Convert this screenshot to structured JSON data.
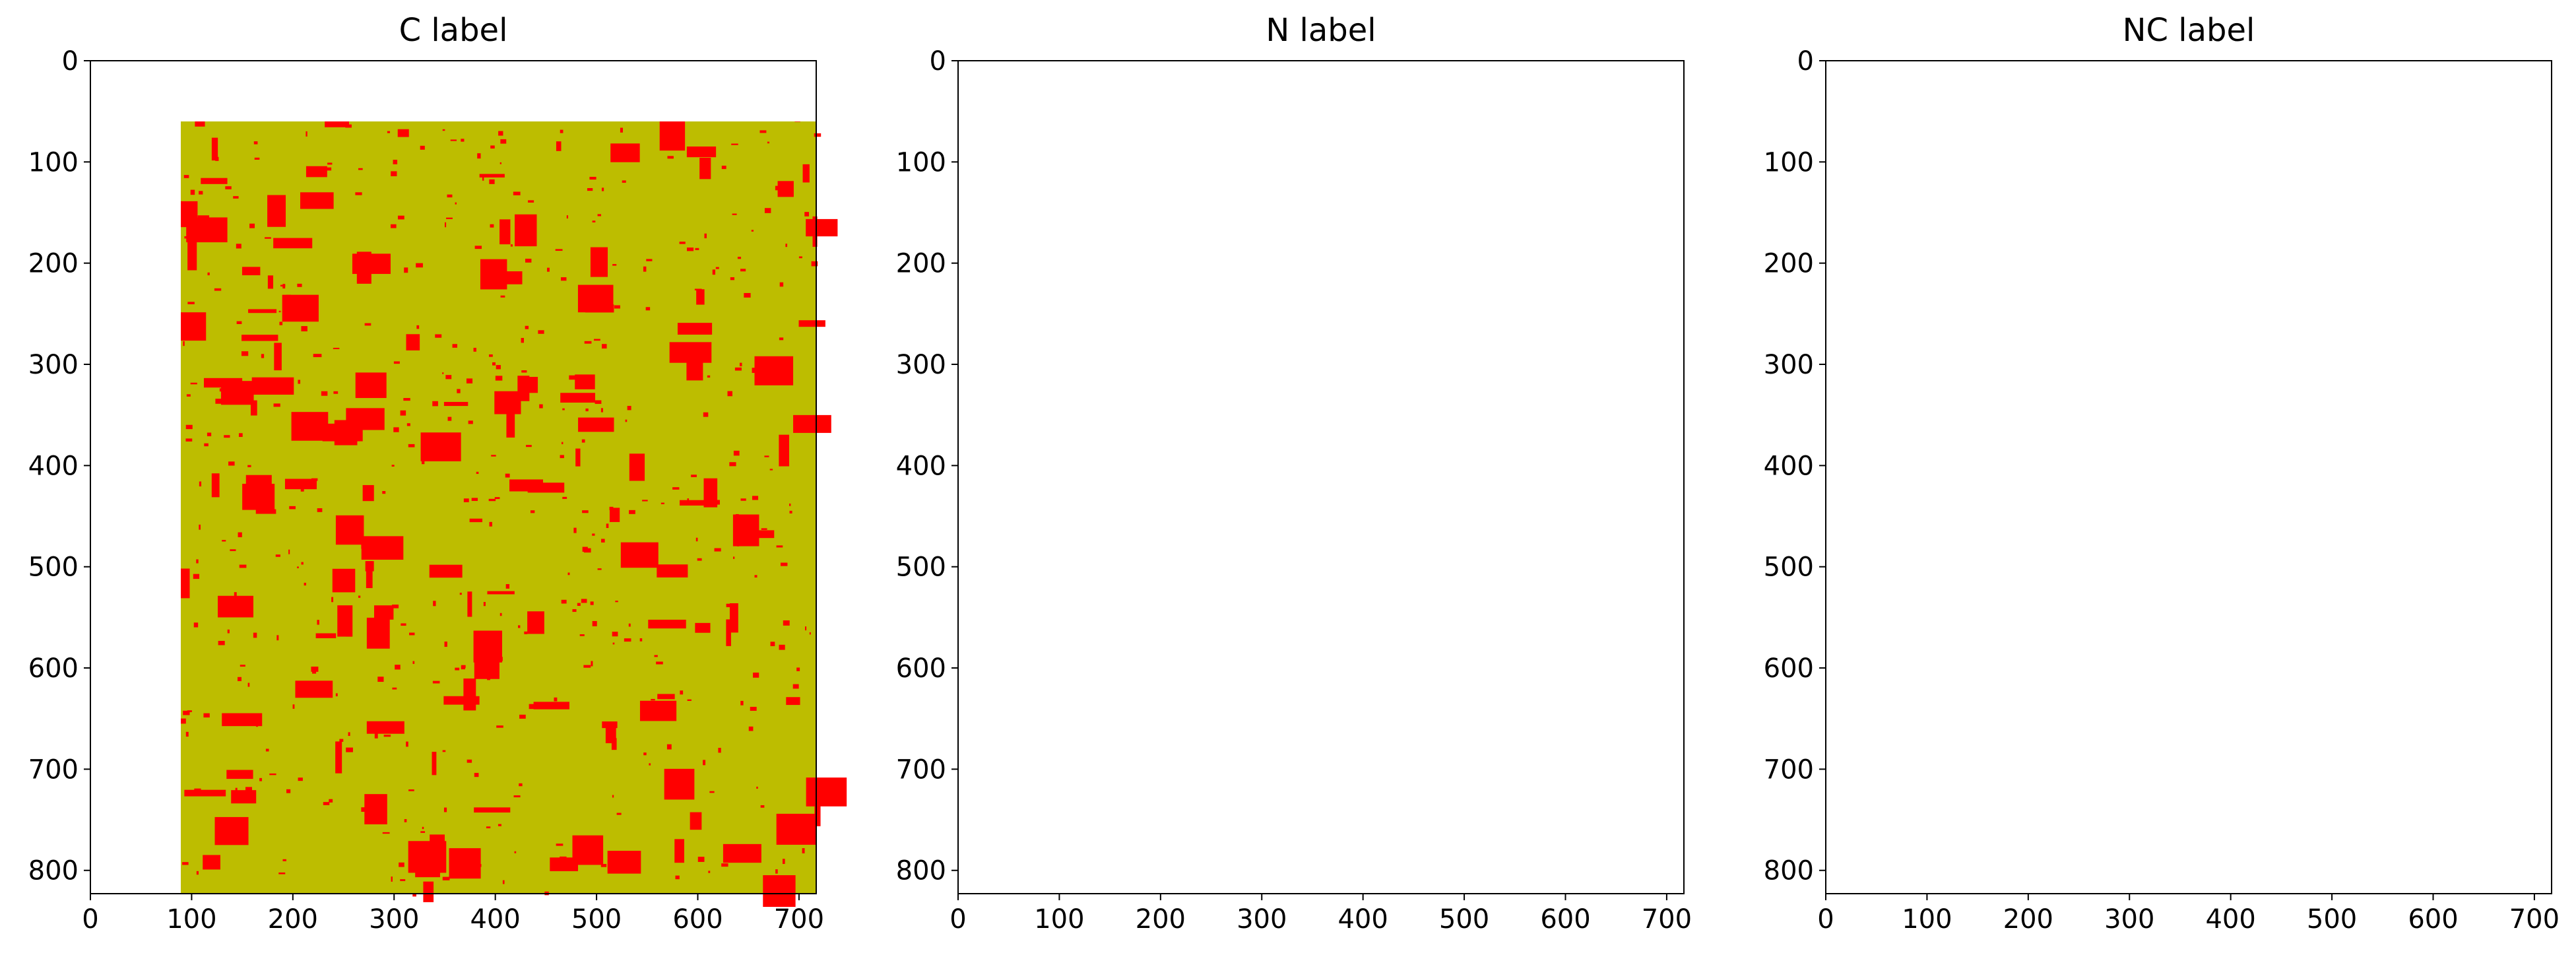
{
  "chart_data": [
    {
      "type": "heatmap",
      "title": "C label",
      "x_ticks": [
        0,
        100,
        200,
        300,
        400,
        500,
        600,
        700
      ],
      "y_ticks": [
        0,
        100,
        200,
        300,
        400,
        500,
        600,
        700,
        800
      ],
      "xlim": [
        0,
        717
      ],
      "ylim": [
        823,
        0
      ],
      "background_class": "yellow",
      "classes": [
        "yellow",
        "red"
      ]
    },
    {
      "type": "heatmap",
      "title": "N label",
      "x_ticks": [
        0,
        100,
        200,
        300,
        400,
        500,
        600,
        700
      ],
      "y_ticks": [
        0,
        100,
        200,
        300,
        400,
        500,
        600,
        700,
        800
      ],
      "xlim": [
        0,
        717
      ],
      "ylim": [
        823,
        0
      ],
      "background_class": "blue",
      "classes": [
        "blue",
        "yellow"
      ]
    },
    {
      "type": "heatmap",
      "title": "NC label",
      "x_ticks": [
        0,
        100,
        200,
        300,
        400,
        500,
        600,
        700
      ],
      "y_ticks": [
        0,
        100,
        200,
        300,
        400,
        500,
        600,
        700,
        800
      ],
      "xlim": [
        0,
        717
      ],
      "ylim": [
        823,
        0
      ],
      "background_class": "blue",
      "classes": [
        "blue",
        "yellow",
        "red"
      ]
    }
  ],
  "colors": {
    "yellow": "#BDBD00",
    "red": "#FF0000",
    "blue": "#0000FF"
  }
}
